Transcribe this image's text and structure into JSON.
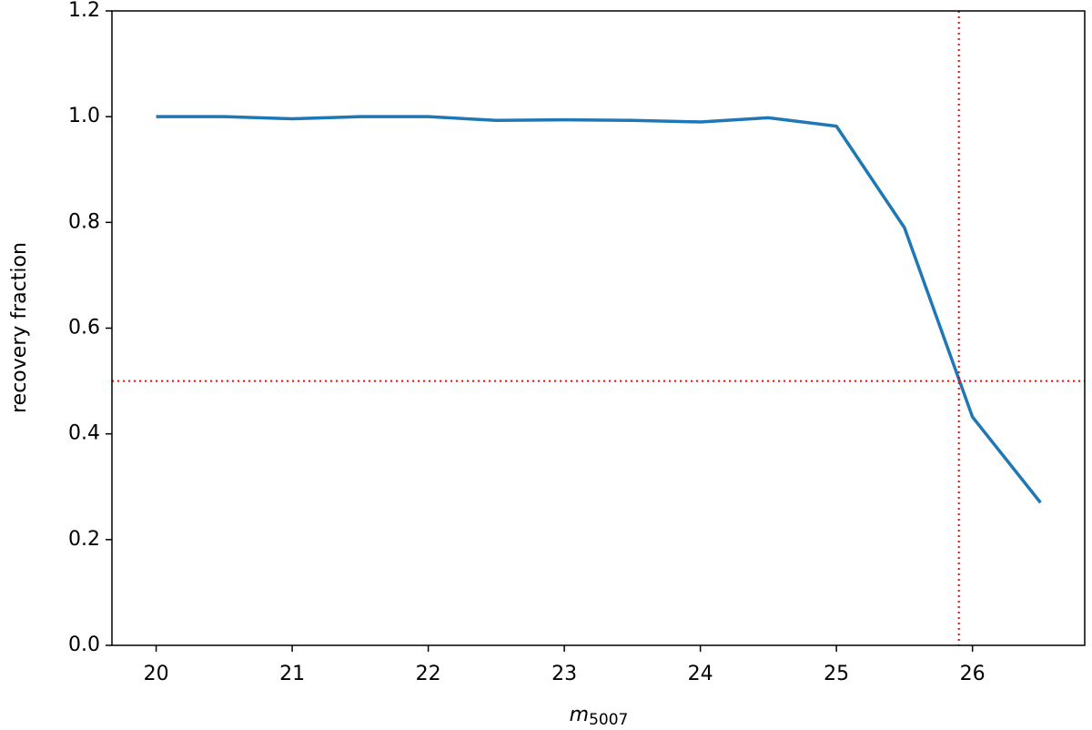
{
  "chart_data": {
    "type": "line",
    "xlabel": {
      "text": "m",
      "subscript": "5007"
    },
    "ylabel": "recovery fraction",
    "x": [
      20,
      20.5,
      21,
      21.5,
      22,
      22.5,
      23,
      23.5,
      24,
      24.5,
      25,
      25.5,
      26,
      26.5
    ],
    "series": [
      {
        "color": "#1f77b4",
        "values": [
          1.0,
          1.0,
          0.996,
          1.0,
          1.0,
          0.993,
          0.994,
          0.993,
          0.99,
          0.998,
          0.982,
          0.79,
          0.432,
          0.27
        ]
      }
    ],
    "xlim": [
      19.675,
      26.825
    ],
    "ylim": [
      0,
      1.2
    ],
    "xticks": [
      20,
      21,
      22,
      23,
      24,
      25,
      26
    ],
    "yticks": [
      {
        "value": 0,
        "label": "0.0"
      },
      0.2,
      0.4,
      0.6,
      0.8,
      {
        "value": 1,
        "label": "1.0"
      },
      1.2
    ],
    "hlines": [
      {
        "y": 0.5,
        "color": "red"
      }
    ],
    "vlines": [
      {
        "x": 25.9,
        "color": "red"
      }
    ]
  }
}
